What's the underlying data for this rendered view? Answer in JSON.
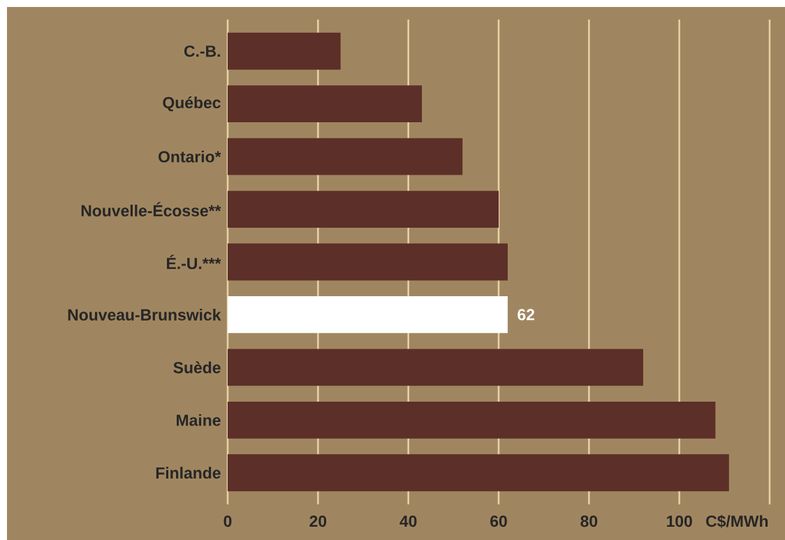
{
  "chart_data": {
    "type": "bar",
    "orientation": "horizontal",
    "categories": [
      "C.-B.",
      "Québec",
      "Ontario*",
      "Nouvelle-Écosse**",
      "É.-U.***",
      "Nouveau-Brunswick",
      "Suède",
      "Maine",
      "Finlande"
    ],
    "values": [
      25,
      43,
      52,
      60,
      62,
      62,
      92,
      108,
      111
    ],
    "colors": [
      "#5c2f28",
      "#5c2f28",
      "#5c2f28",
      "#5c2f28",
      "#5c2f28",
      "#ffffff",
      "#5c2f28",
      "#5c2f28",
      "#5c2f28"
    ],
    "value_labels": [
      null,
      null,
      null,
      null,
      null,
      "62",
      null,
      null,
      null
    ],
    "xlabel": "C$/MWh",
    "xlim": [
      0,
      120
    ],
    "xticks": [
      0,
      20,
      40,
      60,
      80,
      100,
      {
        "value": 120,
        "label": null
      }
    ],
    "grid": "x"
  }
}
